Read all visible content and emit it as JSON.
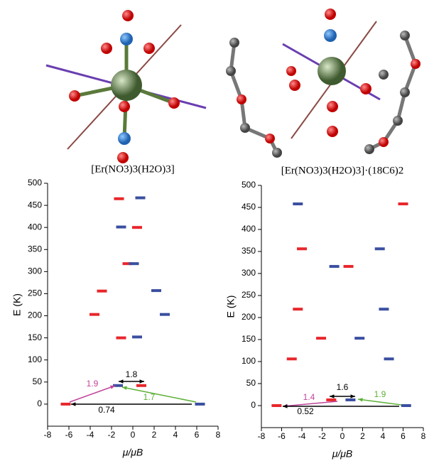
{
  "chart_data": [
    {
      "type": "levels",
      "title": "[Er(NO3)3(H2O)3]",
      "x_label": "μ/μB",
      "y_label": "E (K)",
      "xlim": [
        -8,
        8
      ],
      "xticks": [
        -8,
        -6,
        -4,
        -2,
        0,
        2,
        4,
        6,
        8
      ],
      "ylim": [
        -50,
        500
      ],
      "yticks": [
        0,
        50,
        100,
        150,
        200,
        250,
        300,
        350,
        400,
        450,
        500
      ],
      "series": [
        {
          "color": "#e8262b",
          "x": [
            -6.3,
            0.8,
            -3.6,
            -2.9,
            -0.5,
            -1.1,
            0.4,
            -1.3
          ],
          "values": [
            0,
            42,
            203,
            256,
            318,
            150,
            400,
            465
          ]
        },
        {
          "color": "#3a4fa0",
          "x": [
            6.3,
            -1.4,
            3.0,
            2.2,
            0.1,
            0.4,
            -1.1,
            0.7
          ],
          "values": [
            0,
            42,
            203,
            257,
            318,
            152,
            401,
            467
          ]
        }
      ],
      "annotations": [
        {
          "text": "1.8",
          "color": "#000000"
        },
        {
          "text": "1.9",
          "color": "#c0449a"
        },
        {
          "text": "1.7",
          "color": "#5cb036"
        },
        {
          "text": "0.74",
          "color": "#000000"
        }
      ]
    },
    {
      "type": "levels",
      "title": "[Er(NO3)3(H2O)3]·(18C6)2",
      "x_label": "μ/μB",
      "y_label": "E (K)",
      "xlim": [
        -8,
        8
      ],
      "xticks": [
        -8,
        -6,
        -4,
        -2,
        0,
        2,
        4,
        6,
        8
      ],
      "ylim": [
        -50,
        500
      ],
      "yticks": [
        0,
        50,
        100,
        150,
        200,
        250,
        300,
        350,
        400,
        450,
        500
      ],
      "series": [
        {
          "color": "#e8262b",
          "x": [
            -6.5,
            -1.1,
            -5.0,
            -2.1,
            -4.4,
            -4.0,
            0.6,
            6.0
          ],
          "values": [
            0,
            13,
            106,
            153,
            219,
            356,
            316,
            458
          ]
        },
        {
          "color": "#3a4fa0",
          "x": [
            6.3,
            0.8,
            4.6,
            1.7,
            4.1,
            3.7,
            -0.8,
            -4.4
          ],
          "values": [
            0,
            13,
            106,
            153,
            219,
            356,
            316,
            458
          ]
        }
      ],
      "annotations": [
        {
          "text": "1.6",
          "color": "#000000"
        },
        {
          "text": "1.4",
          "color": "#c0449a"
        },
        {
          "text": "1.9",
          "color": "#5cb036"
        },
        {
          "text": "0.52",
          "color": "#000000"
        }
      ]
    }
  ]
}
